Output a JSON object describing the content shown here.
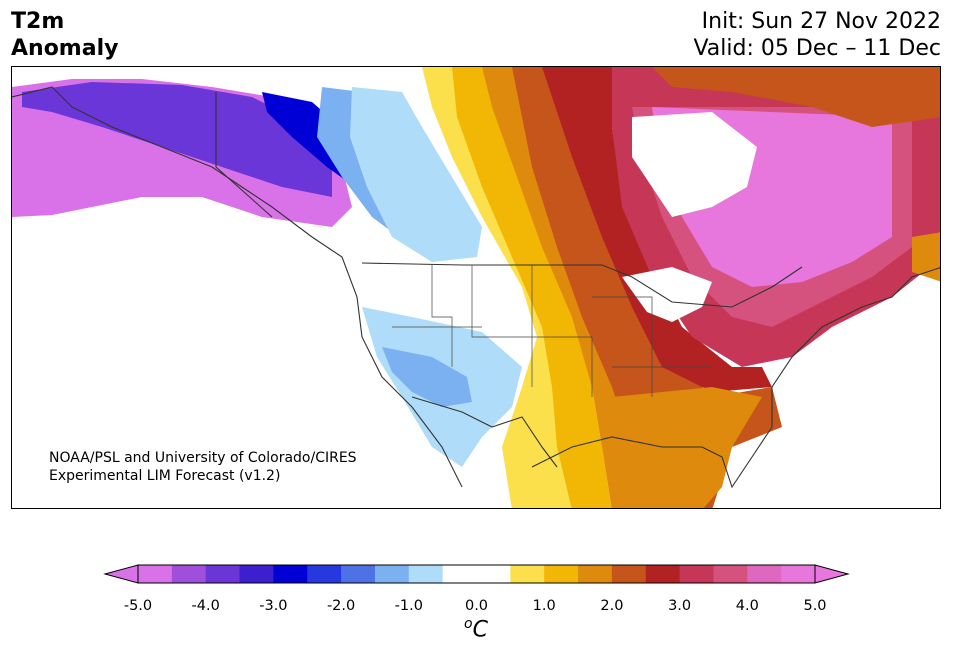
{
  "title": {
    "left": [
      "T2m",
      "Anomaly"
    ],
    "init": "Init: Sun 27 Nov 2022",
    "valid": "Valid: 05 Dec – 11 Dec"
  },
  "credit": {
    "line1": "NOAA/PSL and University of Colorado/CIRES",
    "line2": "Experimental LIM Forecast (v1.2)"
  },
  "colorbar": {
    "unit_super": "o",
    "unit": "C",
    "ticks": [
      "-5.0",
      "-4.0",
      "-3.0",
      "-2.0",
      "-1.0",
      "0.0",
      "1.0",
      "2.0",
      "3.0",
      "4.0",
      "5.0"
    ],
    "colors": [
      "#d971e8",
      "#9f4fdc",
      "#6b36d8",
      "#3d1fd0",
      "#0000d6",
      "#2838df",
      "#4e71e6",
      "#7bb1f1",
      "#afdcf8",
      "#ffffff",
      "#ffffff",
      "#fbe04b",
      "#f2b705",
      "#dd8a0d",
      "#c5551a",
      "#b22222",
      "#c63656",
      "#d5527e",
      "#de68c0",
      "#e777dc"
    ],
    "under_color": "#d971e8",
    "over_color": "#e777dc"
  },
  "map": {
    "region": "North America",
    "anomaly_pattern": {
      "west_alaska_yukon": "negative (-5 to -3 °C)",
      "pacific_northwest_bc": "negative (-2 to -1 °C)",
      "southwest_us": "near zero to -1 °C",
      "plains_prairies": "positive (+1 to +3 °C)",
      "eastern_canada_hudson": "strongly positive (+4 to +5 °C)",
      "southeast_us": "positive (+2 to +3 °C)"
    }
  }
}
